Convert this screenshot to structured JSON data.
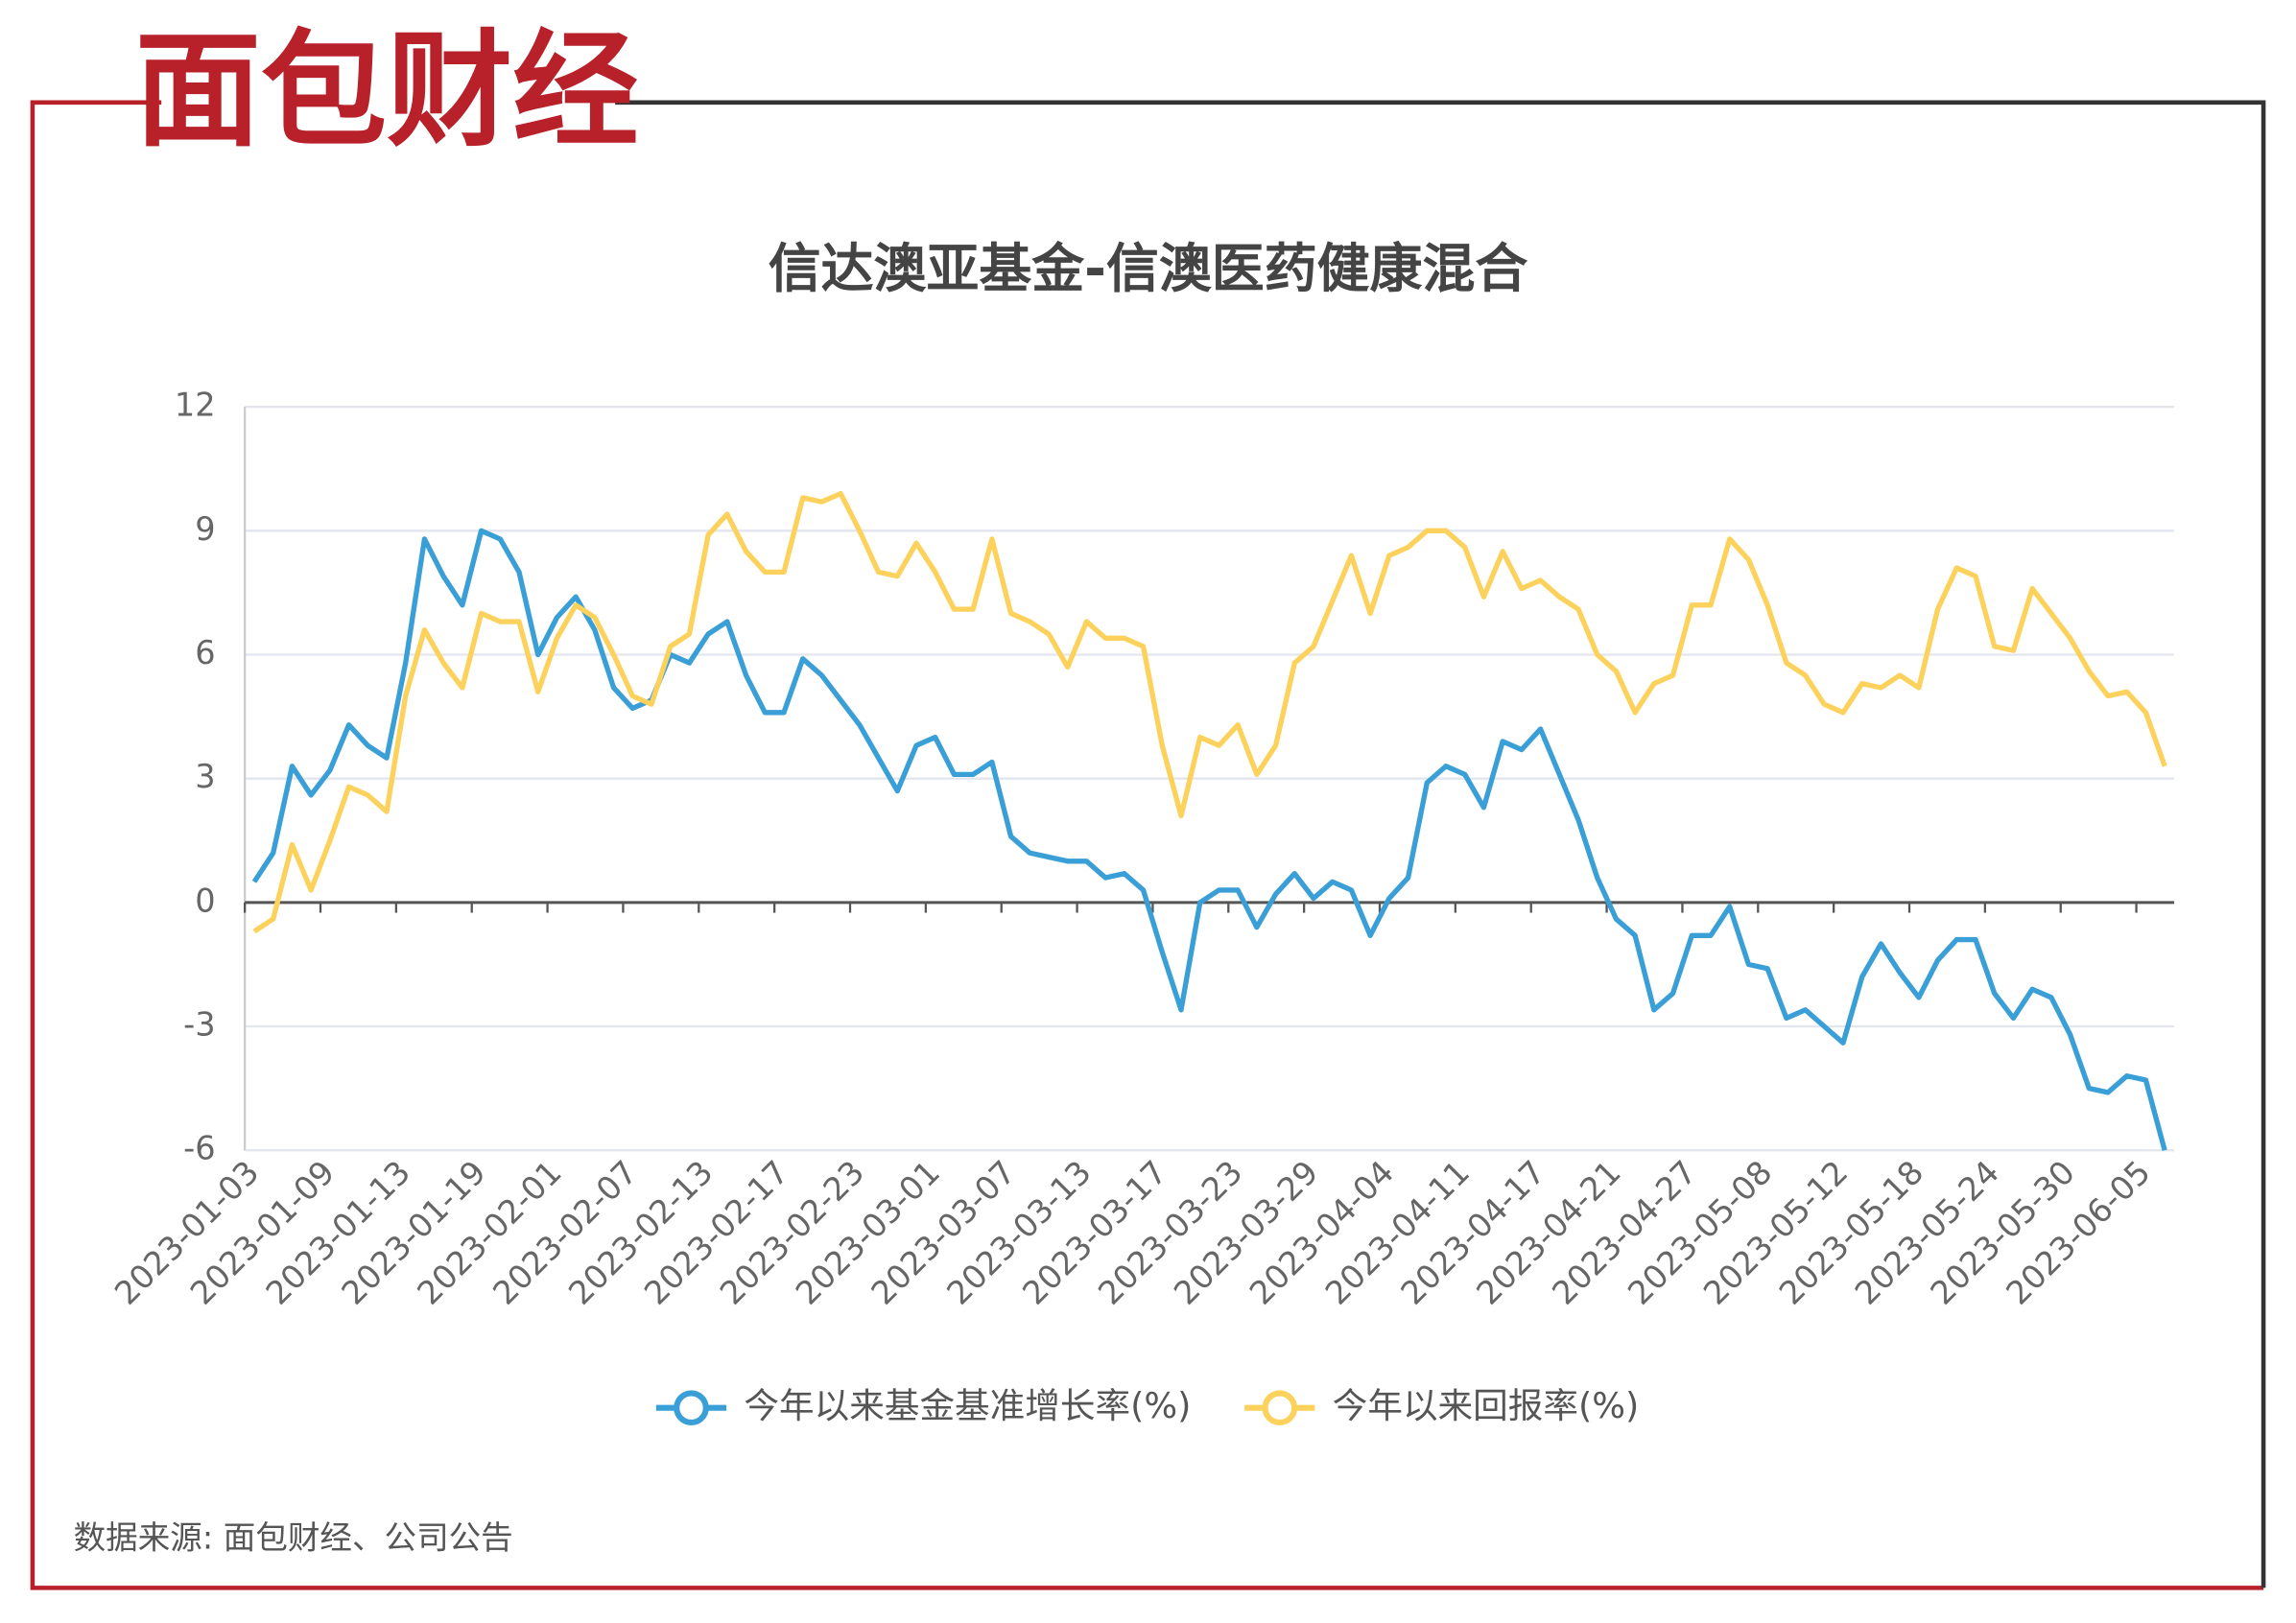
{
  "logo": "面包财经",
  "source": "数据来源: 面包财经、公司公告",
  "chart_data": {
    "type": "line",
    "title": "信达澳亚基金-信澳医药健康混合",
    "categories": [
      "2023-01-03",
      null,
      null,
      null,
      "2023-01-09",
      null,
      null,
      null,
      "2023-01-13",
      null,
      null,
      null,
      "2023-01-19",
      null,
      null,
      null,
      "2023-02-01",
      null,
      null,
      null,
      "2023-02-07",
      null,
      null,
      null,
      "2023-02-13",
      null,
      null,
      null,
      "2023-02-17",
      null,
      null,
      null,
      "2023-02-23",
      null,
      null,
      null,
      "2023-03-01",
      null,
      null,
      null,
      "2023-03-07",
      null,
      null,
      null,
      "2023-03-13",
      null,
      null,
      null,
      "2023-03-17",
      null,
      null,
      null,
      "2023-03-23",
      null,
      null,
      null,
      "2023-03-29",
      null,
      null,
      null,
      "2023-04-04",
      null,
      null,
      null,
      "2023-04-11",
      null,
      null,
      null,
      "2023-04-17",
      null,
      null,
      null,
      "2023-04-21",
      null,
      null,
      null,
      "2023-04-27",
      null,
      null,
      null,
      "2023-05-08",
      null,
      null,
      null,
      "2023-05-12",
      null,
      null,
      null,
      "2023-05-18",
      null,
      null,
      null,
      "2023-05-24",
      null,
      null,
      null,
      "2023-05-30",
      null,
      null,
      null,
      "2023-06-05",
      null
    ],
    "series": [
      {
        "name": "今年以来基金基准增长率(%)",
        "color": "#3a9fd6",
        "values": [
          0.5,
          1.2,
          3.3,
          2.6,
          3.2,
          4.3,
          3.8,
          3.5,
          5.8,
          8.8,
          7.9,
          7.2,
          9.0,
          8.8,
          8.0,
          6.0,
          6.9,
          7.4,
          6.6,
          5.2,
          4.7,
          4.9,
          6.0,
          5.8,
          6.5,
          6.8,
          5.5,
          4.6,
          4.6,
          5.9,
          5.5,
          4.9,
          4.3,
          3.5,
          2.7,
          3.8,
          4.0,
          3.1,
          3.1,
          3.4,
          1.6,
          1.2,
          1.1,
          1.0,
          1.0,
          0.6,
          0.7,
          0.3,
          -1.2,
          -2.6,
          0.0,
          0.3,
          0.3,
          -0.6,
          0.2,
          0.7,
          0.1,
          0.5,
          0.3,
          -0.8,
          0.1,
          0.6,
          2.9,
          3.3,
          3.1,
          2.3,
          3.9,
          3.7,
          4.2,
          3.1,
          2.0,
          0.6,
          -0.4,
          -0.8,
          -2.6,
          -2.2,
          -0.8,
          -0.8,
          -0.1,
          -1.5,
          -1.6,
          -2.8,
          -2.6,
          -3.0,
          -3.4,
          -1.8,
          -1.0,
          -1.7,
          -2.3,
          -1.4,
          -0.9,
          -0.9,
          -2.2,
          -2.8,
          -2.1,
          -2.3,
          -3.2,
          -4.5,
          -4.6,
          -4.2,
          -4.3,
          -6.0
        ]
      },
      {
        "name": "今年以来回报率(%)",
        "color": "#fcd15c",
        "values": [
          -0.7,
          -0.4,
          1.4,
          0.3,
          1.5,
          2.8,
          2.6,
          2.2,
          5.0,
          6.6,
          5.8,
          5.2,
          7.0,
          6.8,
          6.8,
          5.1,
          6.4,
          7.2,
          6.9,
          6.0,
          5.0,
          4.8,
          6.2,
          6.5,
          8.9,
          9.4,
          8.5,
          8.0,
          8.0,
          9.8,
          9.7,
          9.9,
          9.0,
          8.0,
          7.9,
          8.7,
          8.0,
          7.1,
          7.1,
          8.8,
          7.0,
          6.8,
          6.5,
          5.7,
          6.8,
          6.4,
          6.4,
          6.2,
          3.8,
          2.1,
          4.0,
          3.8,
          4.3,
          3.1,
          3.8,
          5.8,
          6.2,
          7.3,
          8.4,
          7.0,
          8.4,
          8.6,
          9.0,
          9.0,
          8.6,
          7.4,
          8.5,
          7.6,
          7.8,
          7.4,
          7.1,
          6.0,
          5.6,
          4.6,
          5.3,
          5.5,
          7.2,
          7.2,
          8.8,
          8.3,
          7.2,
          5.8,
          5.5,
          4.8,
          4.6,
          5.3,
          5.2,
          5.5,
          5.2,
          7.1,
          8.1,
          7.9,
          6.2,
          6.1,
          7.6,
          7.0,
          6.4,
          5.6,
          5.0,
          5.1,
          4.6,
          3.3
        ]
      }
    ],
    "ylim": [
      -6,
      12
    ],
    "yticks": [
      -6,
      -3,
      0,
      3,
      6,
      9,
      12
    ],
    "grid": true
  }
}
